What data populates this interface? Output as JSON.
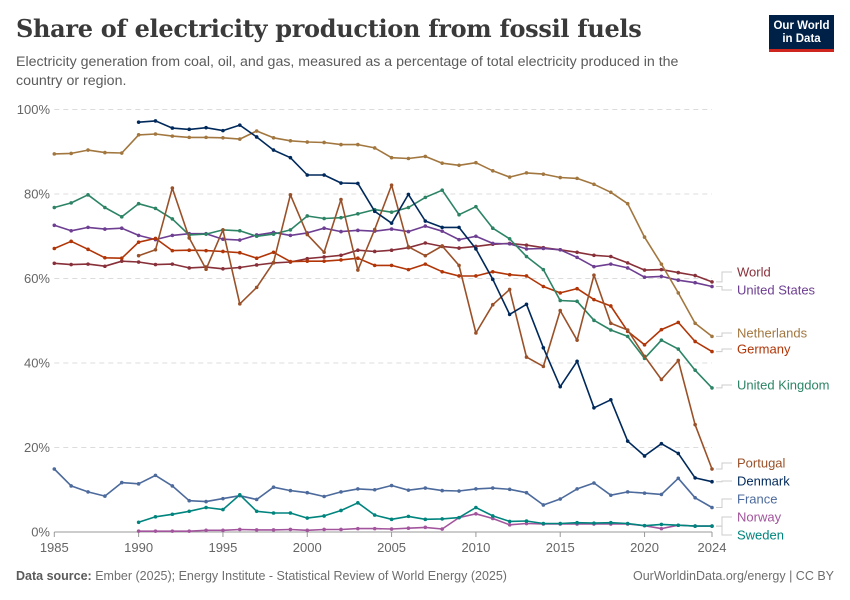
{
  "header": {
    "title": "Share of electricity production from fossil fuels",
    "subtitle": "Electricity generation from coal, oil, and gas, measured as a percentage of total electricity produced in the country or region.",
    "logo_line1": "Our World",
    "logo_line2": "in Data"
  },
  "footer": {
    "source_label": "Data source:",
    "source_text": " Ember (2025); Energy Institute - Statistical Review of World Energy (2025)",
    "right_text": "OurWorldinData.org/energy | CC BY"
  },
  "chart_data": {
    "type": "line",
    "title": "Share of electricity production from fossil fuels",
    "xlabel": "",
    "ylabel": "",
    "xlim": [
      1985,
      2024
    ],
    "ylim": [
      0,
      100
    ],
    "x_ticks": [
      1985,
      1990,
      1995,
      2000,
      2005,
      2010,
      2015,
      2020,
      2024
    ],
    "y_ticks": [
      0,
      20,
      40,
      60,
      80,
      100
    ],
    "y_tick_labels": [
      "0%",
      "20%",
      "40%",
      "60%",
      "80%",
      "100%"
    ],
    "grid": true,
    "legend": "right (inline labels at line ends)",
    "series": [
      {
        "name": "World",
        "color": "#883039",
        "start": 1985,
        "values": [
          63.6,
          63.3,
          63.4,
          62.9,
          64.1,
          63.9,
          63.3,
          63.4,
          62.5,
          62.7,
          62.3,
          62.6,
          63.2,
          63.7,
          63.9,
          64.7,
          65.1,
          65.5,
          66.7,
          66.4,
          66.7,
          67.3,
          68.4,
          67.6,
          67.2,
          67.6,
          68.1,
          68.3,
          67.9,
          67.3,
          66.8,
          66.2,
          65.5,
          65.2,
          63.7,
          62.0,
          62.1,
          61.4,
          60.7,
          59.2
        ]
      },
      {
        "name": "United States",
        "color": "#6d3e91",
        "start": 1985,
        "values": [
          72.6,
          71.3,
          72.1,
          71.7,
          71.9,
          70.2,
          69.2,
          70.2,
          70.6,
          70.6,
          69.3,
          69.1,
          70.3,
          70.9,
          70.2,
          70.8,
          71.9,
          71.1,
          71.4,
          71.2,
          71.7,
          71.1,
          72.4,
          71.2,
          69.2,
          70.0,
          68.3,
          68.2,
          67.0,
          67.1,
          66.8,
          65.0,
          62.8,
          63.4,
          62.5,
          60.3,
          60.5,
          59.6,
          59.0,
          58.1
        ]
      },
      {
        "name": "Netherlands",
        "color": "#a2773f",
        "start": 1985,
        "values": [
          89.5,
          89.6,
          90.4,
          89.8,
          89.7,
          94.0,
          94.2,
          93.7,
          93.4,
          93.4,
          93.3,
          93.0,
          94.9,
          93.3,
          92.6,
          92.3,
          92.2,
          91.7,
          91.7,
          90.9,
          88.6,
          88.4,
          88.9,
          87.3,
          86.8,
          87.4,
          85.5,
          84.0,
          85.0,
          84.7,
          83.9,
          83.7,
          82.3,
          80.4,
          77.7,
          69.8,
          63.4,
          56.6,
          49.4,
          46.3
        ]
      },
      {
        "name": "Germany",
        "color": "#b13507",
        "start": 1985,
        "values": [
          67.1,
          68.8,
          66.9,
          64.9,
          64.8,
          68.6,
          69.5,
          66.6,
          66.7,
          66.6,
          66.4,
          66.1,
          64.8,
          66.2,
          64.0,
          64.1,
          64.1,
          64.4,
          64.8,
          63.1,
          63.1,
          62.1,
          63.4,
          61.6,
          60.6,
          60.6,
          61.6,
          60.9,
          60.6,
          58.1,
          56.6,
          57.6,
          55.0,
          53.5,
          47.5,
          44.3,
          47.9,
          49.6,
          45.1,
          42.7
        ]
      },
      {
        "name": "United Kingdom",
        "color": "#2c8465",
        "start": 1985,
        "values": [
          76.8,
          77.9,
          79.8,
          76.8,
          74.6,
          77.7,
          76.6,
          74.1,
          70.3,
          70.5,
          71.5,
          71.3,
          70.0,
          70.5,
          71.5,
          74.8,
          74.2,
          74.4,
          75.3,
          76.3,
          75.7,
          76.8,
          79.2,
          80.9,
          75.1,
          77.0,
          71.9,
          69.4,
          65.2,
          62.1,
          54.8,
          54.6,
          50.1,
          47.8,
          46.3,
          41.1,
          45.4,
          43.3,
          38.3,
          34.1
        ]
      },
      {
        "name": "Portugal",
        "color": "#9a5129",
        "start": 1990,
        "values": [
          65.4,
          66.8,
          81.4,
          69.6,
          62.2,
          71.5,
          54.0,
          57.9,
          63.8,
          79.8,
          70.4,
          66.2,
          78.7,
          62.0,
          71.6,
          82.1,
          67.5,
          65.4,
          67.7,
          63.1,
          47.1,
          53.8,
          57.4,
          41.4,
          39.2,
          52.4,
          45.4,
          60.8,
          49.4,
          47.8,
          41.6,
          36.1,
          40.6,
          25.4,
          14.9
        ]
      },
      {
        "name": "Denmark",
        "color": "#00295b",
        "start": 1990,
        "values": [
          97.0,
          97.3,
          95.6,
          95.3,
          95.7,
          95.0,
          96.3,
          93.5,
          90.4,
          88.6,
          84.5,
          84.5,
          82.6,
          82.5,
          75.9,
          73.1,
          79.9,
          73.6,
          72.1,
          72.1,
          67.0,
          59.8,
          51.5,
          53.9,
          43.6,
          34.4,
          40.4,
          29.4,
          31.3,
          21.5,
          18.0,
          20.9,
          18.6,
          12.8,
          11.9
        ]
      },
      {
        "name": "France",
        "color": "#4c6a9c",
        "start": 1985,
        "values": [
          14.9,
          10.9,
          9.5,
          8.5,
          11.7,
          11.4,
          13.4,
          10.9,
          7.4,
          7.2,
          7.9,
          8.6,
          7.7,
          10.6,
          9.8,
          9.3,
          8.4,
          9.5,
          10.2,
          10.0,
          11.0,
          9.9,
          10.4,
          9.8,
          9.7,
          10.2,
          10.4,
          10.1,
          9.3,
          6.4,
          7.8,
          10.2,
          11.6,
          8.7,
          9.5,
          9.2,
          8.9,
          12.7,
          8.1,
          5.8
        ]
      },
      {
        "name": "Norway",
        "color": "#a2559c",
        "start": 1990,
        "values": [
          0.2,
          0.2,
          0.2,
          0.2,
          0.4,
          0.4,
          0.6,
          0.5,
          0.5,
          0.6,
          0.4,
          0.6,
          0.6,
          0.8,
          0.8,
          0.7,
          0.9,
          1.1,
          0.7,
          3.4,
          4.3,
          3.2,
          1.7,
          2.0,
          1.9,
          1.9,
          1.9,
          1.9,
          1.9,
          1.9,
          1.5,
          0.8,
          1.6,
          1.4,
          1.4
        ]
      },
      {
        "name": "Sweden",
        "color": "#00847e",
        "start": 1990,
        "values": [
          2.3,
          3.6,
          4.2,
          4.9,
          5.8,
          5.3,
          8.8,
          4.9,
          4.5,
          4.5,
          3.3,
          3.8,
          5.1,
          6.9,
          4.0,
          3.0,
          3.7,
          3.0,
          3.1,
          3.4,
          5.8,
          3.8,
          2.5,
          2.6,
          2.0,
          2.0,
          2.2,
          2.1,
          2.2,
          2.0,
          1.5,
          1.8,
          1.6,
          1.4,
          1.4
        ]
      }
    ]
  }
}
